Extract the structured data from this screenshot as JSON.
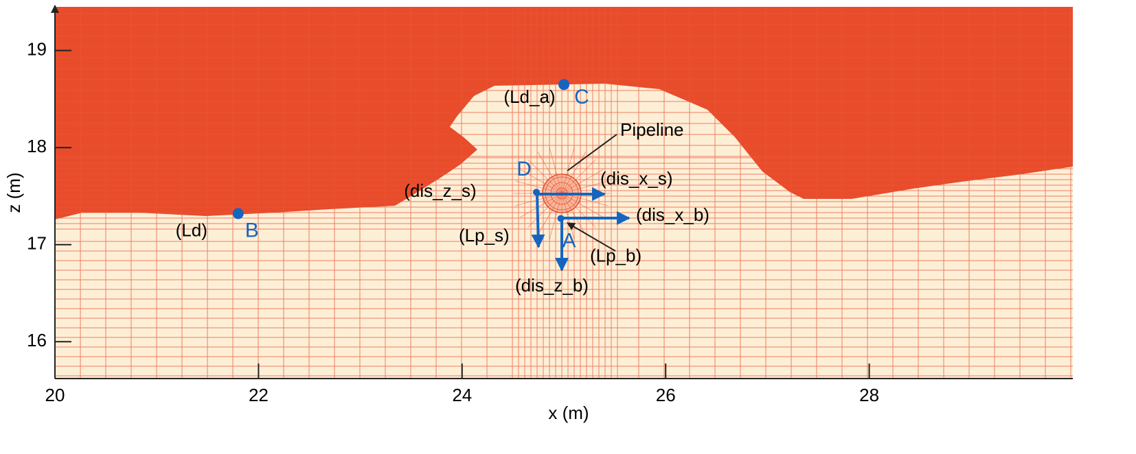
{
  "chart_data": {
    "type": "scatter",
    "x_label": "x (m)",
    "y_label": "z (m)",
    "xlim": [
      20,
      30
    ],
    "ylim": [
      15.62,
      19.45
    ],
    "xticks": [
      20,
      22,
      24,
      26,
      28
    ],
    "yticks": [
      16,
      17,
      18,
      19
    ],
    "color": "#1565c0",
    "points": [
      {
        "label": "C",
        "note": "(Ld_a)",
        "x": 25,
        "y": 18.65
      },
      {
        "label": "B",
        "note": "(Ld)",
        "x": 21.8,
        "y": 17.32
      },
      {
        "label": "D",
        "note": "(dis_z_s)",
        "x": 24.73,
        "y": 17.54
      },
      {
        "label": "A",
        "note": "(Lp_b)",
        "x": 24.97,
        "y": 17.27
      }
    ],
    "annotations": [
      "Pipeline",
      "(dis_x_s)",
      "(dis_x_b)",
      "(Lp_s)",
      "(dis_z_b)"
    ]
  }
}
